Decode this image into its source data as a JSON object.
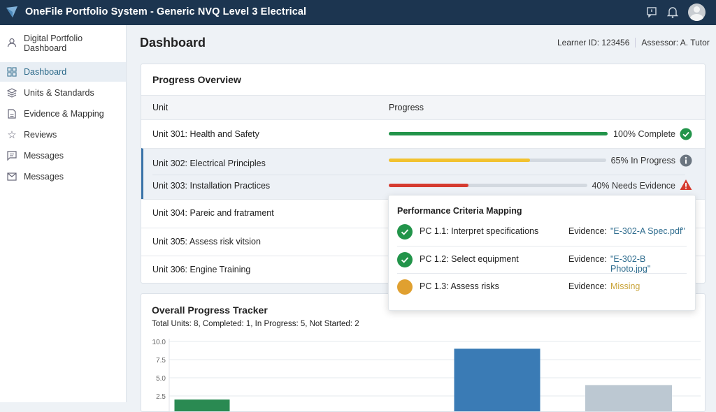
{
  "app": {
    "title": "OneFile Portfolio System - Generic NVQ Level 3 Electrical",
    "icons": [
      "logo-icon",
      "feedback-icon",
      "bell-icon",
      "avatar"
    ]
  },
  "sidebar": {
    "profile": "Digital Portfolio Dashboard",
    "items": [
      {
        "label": "Dashboard",
        "icon": "grid-icon",
        "active": true
      },
      {
        "label": "Units & Standards",
        "icon": "layers-icon"
      },
      {
        "label": "Evidence & Mapping",
        "icon": "document-icon"
      },
      {
        "label": "Reviews",
        "icon": "star-icon"
      },
      {
        "label": "Messages",
        "icon": "chat-icon"
      },
      {
        "label": "Messages",
        "icon": "mail-icon"
      }
    ]
  },
  "header": {
    "title": "Dashboard",
    "learner": "Learner ID: 123456",
    "assessor": "Assessor: A. Tutor"
  },
  "progress": {
    "title": "Progress Overview",
    "col_unit": "Unit",
    "col_progress": "Progress",
    "rows": [
      {
        "unit": "Unit 301: Health and Safety",
        "percent": 100,
        "status": "100% Complete",
        "color": "#22944a",
        "icon": "check-circle-icon"
      },
      {
        "unit": "Unit 302: Electrical Principles",
        "percent": 65,
        "status": "65% In Progress",
        "color": "#f2c230",
        "icon": "info-icon"
      },
      {
        "unit": "Unit 303: Installation Practices",
        "percent": 40,
        "status": "40% Needs Evidence",
        "color": "#d63b30",
        "icon": "warning-icon"
      },
      {
        "unit": "Unit 304: Pareic and fratrament"
      },
      {
        "unit": "Unit 305: Assess risk vitsion"
      },
      {
        "unit": "Unit 306: Engine Training"
      }
    ]
  },
  "mapping": {
    "title": "Performance Criteria Mapping",
    "items": [
      {
        "pc": "PC 1.1: Interpret specifications",
        "label": "Evidence:",
        "evidence": "\"E-302-A Spec.pdf\"",
        "status": "done"
      },
      {
        "pc": "PC 1.2: Select equipment",
        "label": "Evidence:",
        "evidence": "\"E-302-B Photo.jpg\"",
        "status": "done"
      },
      {
        "pc": "PC 1.3: Assess risks",
        "label": "Evidence:",
        "evidence": "Missing",
        "status": "missing"
      }
    ]
  },
  "tracker": {
    "title": "Overall Progress Tracker",
    "summary": "Total Units: 8, Completed: 1, In Progress: 5, Not Started: 2"
  },
  "chart_data": {
    "type": "bar",
    "values": [
      2.0,
      0,
      9.0,
      4.0
    ],
    "colors": [
      "#2a8a52",
      "#2a8a52",
      "#3a7bb5",
      "#bcc8d2"
    ],
    "yticks": [
      "2.5",
      "5.0",
      "7.5",
      "10.0"
    ],
    "ylim": [
      0,
      10
    ],
    "grid": true
  }
}
